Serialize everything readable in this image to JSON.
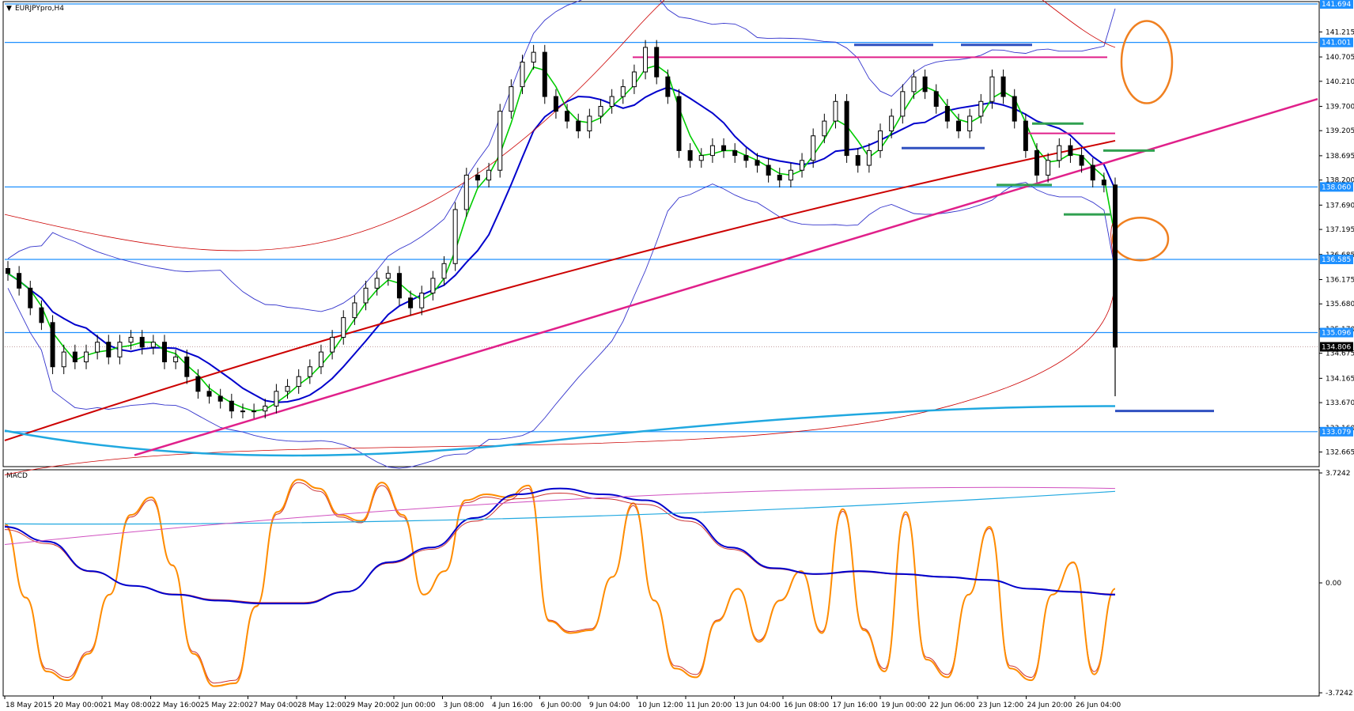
{
  "window": {
    "title": "EURJPYpro,H4",
    "macd_label": "MACD"
  },
  "price_axis": {
    "range": [
      132.4,
      141.8
    ],
    "ticks": [
      "141.215",
      "140.705",
      "140.210",
      "139.700",
      "139.205",
      "138.695",
      "138.200",
      "137.690",
      "137.195",
      "136.685",
      "136.175",
      "135.680",
      "135.170",
      "134.675",
      "134.165",
      "133.670",
      "133.160",
      "132.665"
    ]
  },
  "highlight_labels": {
    "top": "141.694",
    "level_141001": "141.001",
    "level_138060": "138.060",
    "level_136585": "136.585",
    "level_135096": "135.096",
    "current": "134.806",
    "level_133079": "133.079"
  },
  "indicator_axis": {
    "range": [
      -3.7242,
      3.7242
    ],
    "ticks": [
      "3.7242",
      "0.00",
      "-3.7242"
    ]
  },
  "time_axis": {
    "labels": [
      "18 May 2015",
      "20 May 00:00",
      "21 May 08:00",
      "22 May 16:00",
      "25 May 22:00",
      "27 May 04:00",
      "28 May 12:00",
      "29 May 20:00",
      "2 Jun 00:00",
      "3 Jun 08:00",
      "4 Jun 16:00",
      "6 Jun 00:00",
      "9 Jun 04:00",
      "10 Jun 12:00",
      "11 Jun 20:00",
      "13 Jun 04:00",
      "16 Jun 08:00",
      "17 Jun 16:00",
      "19 Jun 00:00",
      "22 Jun 06:00",
      "23 Jun 12:00",
      "24 Jun 20:00",
      "26 Jun 04:00"
    ]
  },
  "colors": {
    "bull": "#ffffff",
    "bear": "#000000",
    "sma_fast": "#00cc00",
    "sma_mid": "#0000cc",
    "bands": "#3333cc",
    "ma_long": "#cc0000",
    "trendline": "#e0208a",
    "levels": "#1e90ff",
    "ma_slow": "#20a8e0",
    "stoch": "#ff8c00",
    "annotation_ellipse": "#f08020"
  },
  "chart_data": {
    "type": "candlestick",
    "title": "EURJPYpro,H4",
    "xlabel": "",
    "ylabel": "",
    "ylim": [
      132.4,
      141.8
    ],
    "horizontal_levels": [
      141.001,
      138.06,
      136.585,
      135.096,
      133.079
    ],
    "current_price": 134.806,
    "candles_close": [
      136.3,
      136.0,
      135.6,
      135.3,
      134.4,
      134.7,
      134.5,
      134.7,
      134.9,
      134.6,
      134.9,
      135.0,
      134.8,
      134.9,
      134.5,
      134.6,
      134.2,
      133.9,
      133.8,
      133.7,
      133.5,
      133.5,
      133.5,
      133.6,
      133.9,
      134.0,
      134.2,
      134.4,
      134.7,
      135.0,
      135.4,
      135.7,
      136.0,
      136.2,
      136.3,
      135.8,
      135.6,
      135.9,
      136.2,
      136.5,
      137.6,
      138.3,
      138.2,
      138.4,
      139.6,
      140.1,
      140.6,
      140.8,
      139.9,
      139.6,
      139.4,
      139.2,
      139.5,
      139.7,
      139.9,
      140.1,
      140.4,
      140.9,
      140.3,
      139.9,
      138.8,
      138.6,
      138.7,
      138.9,
      138.8,
      138.7,
      138.6,
      138.5,
      138.3,
      138.2,
      138.4,
      138.6,
      139.1,
      139.4,
      139.8,
      138.7,
      138.5,
      138.8,
      139.2,
      139.5,
      140.0,
      140.3,
      140.0,
      139.7,
      139.4,
      139.2,
      139.5,
      139.8,
      140.3,
      139.9,
      139.4,
      138.8,
      138.3,
      138.6,
      138.9,
      138.7,
      138.5,
      138.2,
      138.1,
      134.8
    ],
    "stochastic_main": [
      2.0,
      -0.5,
      -3.0,
      -3.3,
      -2.4,
      -0.4,
      2.3,
      2.9,
      0.6,
      -2.4,
      -3.5,
      -3.4,
      -0.8,
      2.4,
      3.5,
      3.2,
      2.3,
      2.1,
      3.4,
      2.3,
      -0.4,
      0.4,
      2.8,
      3.0,
      2.9,
      3.3,
      -1.3,
      -1.7,
      -1.6,
      0.2,
      2.7,
      -0.6,
      -2.9,
      -3.2,
      -1.3,
      -0.2,
      -2.0,
      -0.6,
      0.4,
      -1.7,
      2.5,
      -1.6,
      -3.0,
      2.4,
      -2.6,
      -3.2,
      -0.4,
      1.9,
      -2.9,
      -3.3,
      -0.4,
      0.7,
      -3.1,
      -0.2
    ],
    "macd_main": [
      1.9,
      1.4,
      0.4,
      -0.1,
      -0.4,
      -0.6,
      -0.7,
      -0.7,
      -0.3,
      0.7,
      1.2,
      2.2,
      3.0,
      3.2,
      3.0,
      2.8,
      2.2,
      1.2,
      0.5,
      0.3,
      0.4,
      0.3,
      0.2,
      0.1,
      -0.2,
      -0.3,
      -0.4
    ]
  }
}
